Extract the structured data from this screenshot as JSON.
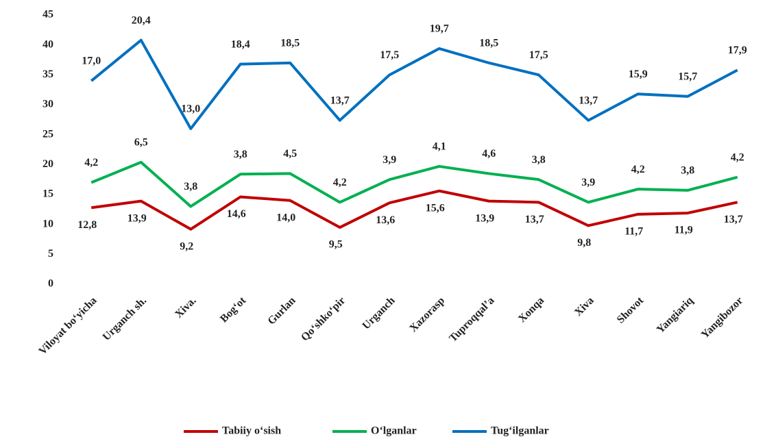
{
  "chart_data": {
    "type": "line",
    "stacked": true,
    "categories": [
      "Viloyat bo‘yicha",
      "Urganch sh.",
      "Xiva.",
      "Bog‘ot",
      "Gurlan",
      "Qo‘shko‘pir",
      "Urganch",
      "Xazorasp",
      "Tuproqqal’a",
      "Xonqa",
      "Xiva",
      "Shovot",
      "Yangiariq",
      "Yangibozor"
    ],
    "series": [
      {
        "name": "Tabiiy o‘sish",
        "color": "#c00000",
        "values": [
          12.8,
          13.9,
          9.2,
          14.6,
          14.0,
          9.5,
          13.6,
          15.6,
          13.9,
          13.7,
          9.8,
          11.7,
          11.9,
          13.7
        ],
        "value_labels": [
          "12,8",
          "13,9",
          "9,2",
          "14,6",
          "14,0",
          "9,5",
          "13,6",
          "15,6",
          "13,9",
          "13,7",
          "9,8",
          "11,7",
          "11,9",
          "13,7"
        ]
      },
      {
        "name": "O‘lganlar",
        "color": "#00b050",
        "values": [
          4.2,
          6.5,
          3.8,
          3.8,
          4.5,
          4.2,
          3.9,
          4.1,
          4.6,
          3.8,
          3.9,
          4.2,
          3.8,
          4.2
        ],
        "value_labels": [
          "4,2",
          "6,5",
          "3,8",
          "3,8",
          "4,5",
          "4,2",
          "3,9",
          "4,1",
          "4,6",
          "3,8",
          "3,9",
          "4,2",
          "3,8",
          "4,2"
        ]
      },
      {
        "name": "Tug‘ilganlar",
        "color": "#0070c0",
        "values": [
          17.0,
          20.4,
          13.0,
          18.4,
          18.5,
          13.7,
          17.5,
          19.7,
          18.5,
          17.5,
          13.7,
          15.9,
          15.7,
          17.9
        ],
        "value_labels": [
          "17,0",
          "20,4",
          "13,0",
          "18,4",
          "18,5",
          "13,7",
          "17,5",
          "19,7",
          "18,5",
          "17,5",
          "13,7",
          "15,9",
          "15,7",
          "17,9"
        ]
      }
    ],
    "ylim": [
      0,
      45
    ],
    "yticks": [
      0,
      5,
      10,
      15,
      20,
      25,
      30,
      35,
      40,
      45
    ],
    "grid": false,
    "legend": "bottom"
  }
}
